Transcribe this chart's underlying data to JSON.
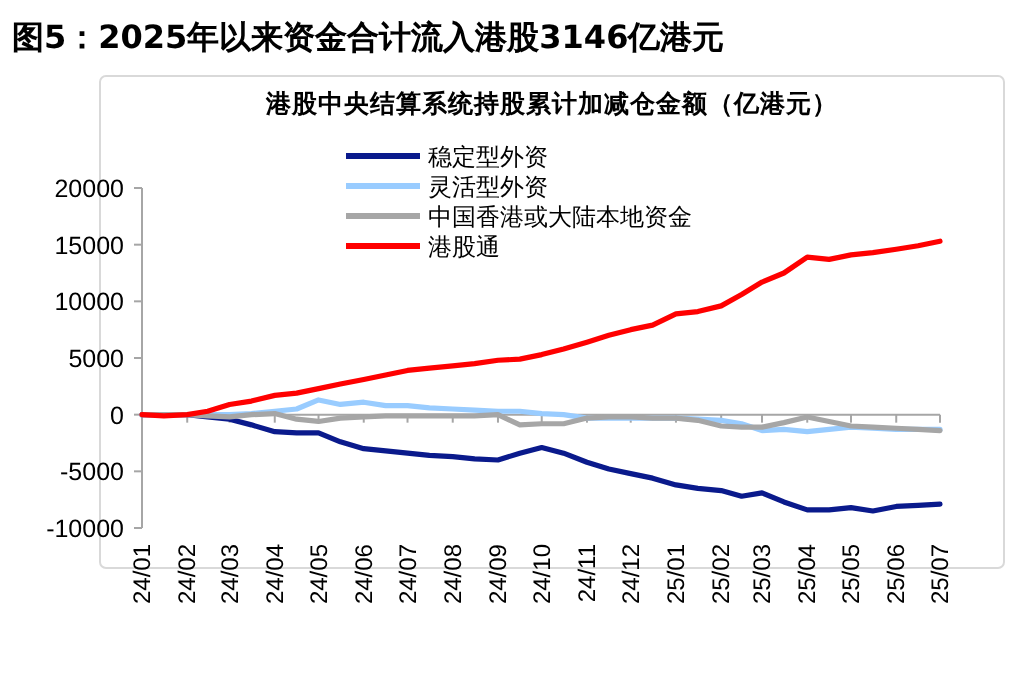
{
  "chart_data": {
    "type": "line",
    "title": "图5：2025年以来资金合计流入港股3146亿港元",
    "subtitle": "港股中央结算系统持股累计加减仓金额（亿港元）",
    "x": [
      "2024-01-01",
      "2024-01-16",
      "2024-02-01",
      "2024-02-15",
      "2024-03-01",
      "2024-03-16",
      "2024-04-01",
      "2024-04-16",
      "2024-05-01",
      "2024-05-16",
      "2024-06-01",
      "2024-06-16",
      "2024-07-01",
      "2024-07-16",
      "2024-08-01",
      "2024-08-16",
      "2024-09-01",
      "2024-09-16",
      "2024-10-01",
      "2024-10-16",
      "2024-11-01",
      "2024-11-16",
      "2024-12-01",
      "2024-12-16",
      "2025-01-01",
      "2025-01-16",
      "2025-02-01",
      "2025-02-15",
      "2025-03-01",
      "2025-03-16",
      "2025-04-01",
      "2025-04-16",
      "2025-05-01",
      "2025-05-16",
      "2025-06-01",
      "2025-06-16",
      "2025-07-01"
    ],
    "series": [
      {
        "name": "稳定型外资",
        "color": "#0a1a8c",
        "values": [
          0,
          0,
          0,
          -200,
          -400,
          -900,
          -1500,
          -1600,
          -1600,
          -2400,
          -3000,
          -3200,
          -3400,
          -3600,
          -3700,
          -3900,
          -4000,
          -3400,
          -2900,
          -3400,
          -4200,
          -4800,
          -5200,
          -5600,
          -6200,
          -6500,
          -6700,
          -7200,
          -6900,
          -7700,
          -8400,
          -8400,
          -8200,
          -8500,
          -8100,
          -8000,
          -7900
        ]
      },
      {
        "name": "灵活型外资",
        "color": "#99ccff",
        "values": [
          0,
          0,
          0,
          0,
          0,
          100,
          300,
          500,
          1300,
          900,
          1100,
          800,
          800,
          600,
          500,
          400,
          300,
          300,
          100,
          0,
          -300,
          -300,
          -300,
          -300,
          -300,
          -400,
          -500,
          -800,
          -1400,
          -1300,
          -1500,
          -1300,
          -1100,
          -1200,
          -1300,
          -1300,
          -1300
        ]
      },
      {
        "name": "中国香港或大陆本地资金",
        "color": "#a6a6a6",
        "values": [
          0,
          0,
          0,
          -100,
          -200,
          0,
          100,
          -400,
          -600,
          -300,
          -200,
          -100,
          -100,
          -100,
          -100,
          -100,
          0,
          -900,
          -800,
          -800,
          -300,
          -200,
          -200,
          -300,
          -300,
          -500,
          -1000,
          -1100,
          -1100,
          -700,
          -200,
          -600,
          -1000,
          -1100,
          -1200,
          -1300,
          -1400
        ]
      },
      {
        "name": "港股通",
        "color": "#ff0000",
        "values": [
          0,
          -100,
          0,
          300,
          900,
          1200,
          1700,
          1900,
          2300,
          2700,
          3100,
          3500,
          3900,
          4100,
          4300,
          4500,
          4800,
          4900,
          5300,
          5800,
          6400,
          7000,
          7500,
          7900,
          8900,
          9100,
          9600,
          10600,
          11700,
          12500,
          13900,
          13700,
          14100,
          14300,
          14600,
          14900,
          15300
        ]
      }
    ],
    "xlim": [
      "2024-01-01",
      "2025-07-01"
    ],
    "xticks": [
      {
        "value": "2024-01",
        "label": "24/01"
      },
      {
        "value": "2024-02",
        "label": "24/02"
      },
      {
        "value": "2024-03",
        "label": "24/03"
      },
      {
        "value": "2024-04",
        "label": "24/04"
      },
      {
        "value": "2024-05",
        "label": "24/05"
      },
      {
        "value": "2024-06",
        "label": "24/06"
      },
      {
        "value": "2024-07",
        "label": "24/07"
      },
      {
        "value": "2024-08",
        "label": "24/08"
      },
      {
        "value": "2024-09",
        "label": "24/09"
      },
      {
        "value": "2024-10",
        "label": "24/10"
      },
      {
        "value": "2024-11",
        "label": "24/11"
      },
      {
        "value": "2024-12",
        "label": "24/12"
      },
      {
        "value": "2025-01",
        "label": "25/01"
      },
      {
        "value": "2025-02",
        "label": "25/02"
      },
      {
        "value": "2025-03",
        "label": "25/03"
      },
      {
        "value": "2025-04",
        "label": "25/04"
      },
      {
        "value": "2025-05",
        "label": "25/05"
      },
      {
        "value": "2025-06",
        "label": "25/06"
      },
      {
        "value": "2025-07",
        "label": "25/07"
      }
    ],
    "ylim": [
      -10000,
      20000
    ],
    "yticks": [
      -10000,
      -5000,
      0,
      5000,
      10000,
      15000,
      20000
    ],
    "legend": "top",
    "marker": "none",
    "line_style": "solid"
  }
}
